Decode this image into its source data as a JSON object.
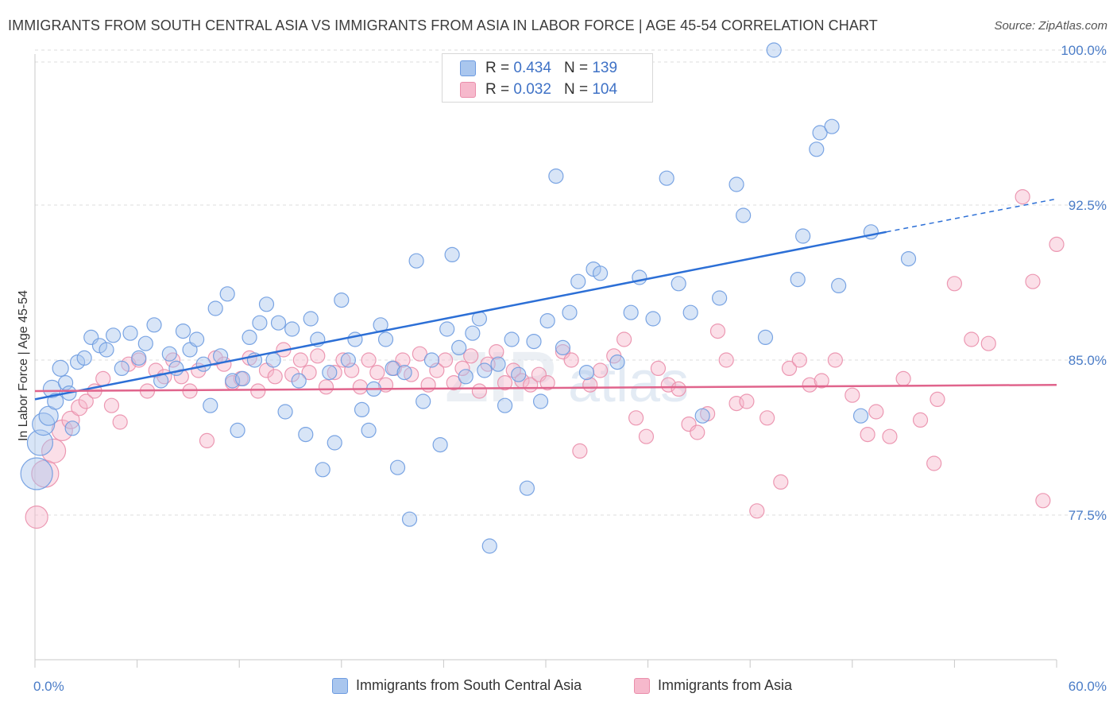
{
  "header": {
    "title": "IMMIGRANTS FROM SOUTH CENTRAL ASIA VS IMMIGRANTS FROM ASIA IN LABOR FORCE | AGE 45-54 CORRELATION CHART",
    "source": "Source: ZipAtlas.com"
  },
  "legend_top": {
    "rows": [
      {
        "r_label": "R =",
        "r_value": "0.434",
        "n_label": "N =",
        "n_value": "139"
      },
      {
        "r_label": "R =",
        "r_value": "0.032",
        "n_label": "N =",
        "n_value": "104"
      }
    ]
  },
  "watermark": {
    "zip": "ZIP",
    "atlas": "atlas"
  },
  "chart_data": {
    "type": "scatter",
    "title": "IMMIGRANTS FROM SOUTH CENTRAL ASIA VS IMMIGRANTS FROM ASIA IN LABOR FORCE | AGE 45-54 CORRELATION CHART",
    "xlabel": "",
    "ylabel": "In Labor Force | Age 45-54",
    "xlim": [
      0,
      60
    ],
    "ylim": [
      70.5,
      100.5
    ],
    "x_tick_labels": [
      "0.0%",
      "60.0%"
    ],
    "y_ticks": [
      77.5,
      85.0,
      92.5,
      100.0
    ],
    "y_tick_labels": [
      "77.5%",
      "85.0%",
      "92.5%",
      "100.0%"
    ],
    "grid": "horizontal dashed",
    "legend_placement": "bottom",
    "colors": {
      "blue_fill": "#a9c6ee",
      "blue_stroke": "#6d9be0",
      "blue_line": "#2c6fd6",
      "pink_fill": "#f6b9cc",
      "pink_stroke": "#ea8eab",
      "pink_line": "#e0648c"
    },
    "series": [
      {
        "name": "Immigrants from South Central Asia",
        "R": 0.434,
        "N": 139,
        "trend": {
          "x0": 0,
          "y0": 83.1,
          "x1": 50.0,
          "y1": 91.2,
          "dash_to_x": 60,
          "dash_to_y": 92.8
        },
        "points": [
          [
            0.1,
            79.5,
            20
          ],
          [
            0.3,
            81.0,
            16
          ],
          [
            0.5,
            81.9,
            14
          ],
          [
            0.8,
            82.3,
            12
          ],
          [
            1.0,
            83.6,
            11
          ],
          [
            1.2,
            83.0,
            10
          ],
          [
            1.5,
            84.6,
            10
          ],
          [
            1.8,
            83.9,
            9
          ],
          [
            2.0,
            83.4,
            9
          ],
          [
            2.2,
            81.7,
            9
          ],
          [
            2.5,
            84.9,
            9
          ],
          [
            2.9,
            85.1,
            9
          ],
          [
            3.3,
            86.1,
            9
          ],
          [
            3.8,
            85.7,
            9
          ],
          [
            4.2,
            85.5,
            9
          ],
          [
            4.6,
            86.2,
            9
          ],
          [
            5.1,
            84.6,
            9
          ],
          [
            5.6,
            86.3,
            9
          ],
          [
            6.1,
            85.1,
            9
          ],
          [
            6.5,
            85.8,
            9
          ],
          [
            7.0,
            86.7,
            9
          ],
          [
            7.4,
            84.0,
            9
          ],
          [
            7.9,
            85.3,
            9
          ],
          [
            8.3,
            84.6,
            9
          ],
          [
            8.7,
            86.4,
            9
          ],
          [
            9.1,
            85.5,
            9
          ],
          [
            9.5,
            86.0,
            9
          ],
          [
            9.9,
            84.8,
            9
          ],
          [
            10.3,
            82.8,
            9
          ],
          [
            10.6,
            87.5,
            9
          ],
          [
            10.9,
            85.2,
            9
          ],
          [
            11.3,
            88.2,
            9
          ],
          [
            11.6,
            84.0,
            9
          ],
          [
            11.9,
            81.6,
            9
          ],
          [
            12.2,
            84.1,
            9
          ],
          [
            12.6,
            86.1,
            9
          ],
          [
            12.9,
            85.0,
            9
          ],
          [
            13.2,
            86.8,
            9
          ],
          [
            13.6,
            87.7,
            9
          ],
          [
            14.0,
            85.0,
            9
          ],
          [
            14.3,
            86.8,
            9
          ],
          [
            14.7,
            82.5,
            9
          ],
          [
            15.1,
            86.5,
            9
          ],
          [
            15.5,
            84.0,
            9
          ],
          [
            15.9,
            81.4,
            9
          ],
          [
            16.2,
            87.0,
            9
          ],
          [
            16.6,
            86.0,
            9
          ],
          [
            16.9,
            79.7,
            9
          ],
          [
            17.3,
            84.4,
            9
          ],
          [
            17.6,
            81.0,
            9
          ],
          [
            18.0,
            87.9,
            9
          ],
          [
            18.4,
            85.0,
            9
          ],
          [
            18.8,
            86.0,
            9
          ],
          [
            19.2,
            82.6,
            9
          ],
          [
            19.6,
            81.6,
            9
          ],
          [
            19.9,
            83.6,
            9
          ],
          [
            20.3,
            86.7,
            9
          ],
          [
            20.6,
            86.0,
            9
          ],
          [
            21.0,
            84.6,
            9
          ],
          [
            21.3,
            79.8,
            9
          ],
          [
            21.7,
            84.4,
            9
          ],
          [
            22.0,
            77.3,
            9
          ],
          [
            22.4,
            89.8,
            9
          ],
          [
            22.8,
            83.0,
            9
          ],
          [
            23.3,
            85.0,
            9
          ],
          [
            23.8,
            80.9,
            9
          ],
          [
            24.2,
            86.5,
            9
          ],
          [
            24.5,
            90.1,
            9
          ],
          [
            24.9,
            85.6,
            9
          ],
          [
            25.3,
            84.2,
            9
          ],
          [
            25.7,
            86.3,
            9
          ],
          [
            26.1,
            87.0,
            9
          ],
          [
            26.4,
            84.5,
            9
          ],
          [
            26.7,
            76.0,
            9
          ],
          [
            27.2,
            84.8,
            9
          ],
          [
            27.6,
            82.8,
            9
          ],
          [
            28.0,
            86.0,
            9
          ],
          [
            28.4,
            84.3,
            9
          ],
          [
            28.9,
            78.8,
            9
          ],
          [
            29.3,
            85.9,
            9
          ],
          [
            29.7,
            83.0,
            9
          ],
          [
            30.1,
            86.9,
            9
          ],
          [
            30.6,
            93.9,
            9
          ],
          [
            31.0,
            85.6,
            9
          ],
          [
            31.4,
            87.3,
            9
          ],
          [
            31.9,
            88.8,
            9
          ],
          [
            32.4,
            84.4,
            9
          ],
          [
            32.8,
            89.4,
            9
          ],
          [
            33.2,
            89.2,
            9
          ],
          [
            34.2,
            84.9,
            9
          ],
          [
            35.0,
            87.3,
            9
          ],
          [
            35.5,
            89.0,
            9
          ],
          [
            36.3,
            87.0,
            9
          ],
          [
            37.1,
            93.8,
            9
          ],
          [
            37.8,
            88.7,
            9
          ],
          [
            38.5,
            87.3,
            9
          ],
          [
            39.2,
            82.3,
            9
          ],
          [
            40.2,
            88.0,
            9
          ],
          [
            41.2,
            93.5,
            9
          ],
          [
            41.6,
            92.0,
            9
          ],
          [
            42.9,
            86.1,
            9
          ],
          [
            43.4,
            100.0,
            9
          ],
          [
            44.8,
            88.9,
            9
          ],
          [
            45.1,
            91.0,
            9
          ],
          [
            45.9,
            95.2,
            9
          ],
          [
            46.1,
            96.0,
            9
          ],
          [
            46.8,
            96.3,
            9
          ],
          [
            47.2,
            88.6,
            9
          ],
          [
            48.5,
            82.3,
            9
          ],
          [
            49.1,
            91.2,
            9
          ],
          [
            51.3,
            89.9,
            9
          ]
        ]
      },
      {
        "name": "Immigrants from Asia",
        "R": 0.032,
        "N": 104,
        "trend": {
          "x0": 0,
          "y0": 83.5,
          "x1": 60,
          "y1": 83.8
        },
        "points": [
          [
            0.1,
            77.4,
            14
          ],
          [
            0.6,
            79.5,
            17
          ],
          [
            1.1,
            80.6,
            15
          ],
          [
            1.6,
            81.6,
            13
          ],
          [
            2.1,
            82.1,
            11
          ],
          [
            2.6,
            82.7,
            10
          ],
          [
            3.0,
            83.0,
            9
          ],
          [
            3.5,
            83.5,
            9
          ],
          [
            4.0,
            84.1,
            9
          ],
          [
            4.5,
            82.8,
            9
          ],
          [
            5.0,
            82.0,
            9
          ],
          [
            5.5,
            84.8,
            9
          ],
          [
            6.1,
            85.0,
            9
          ],
          [
            6.6,
            83.5,
            9
          ],
          [
            7.1,
            84.5,
            9
          ],
          [
            7.6,
            84.2,
            9
          ],
          [
            8.1,
            85.0,
            9
          ],
          [
            8.6,
            84.2,
            9
          ],
          [
            9.1,
            83.5,
            9
          ],
          [
            9.6,
            84.5,
            9
          ],
          [
            10.1,
            81.1,
            9
          ],
          [
            10.6,
            85.1,
            9
          ],
          [
            11.1,
            84.8,
            9
          ],
          [
            11.6,
            83.9,
            9
          ],
          [
            12.1,
            84.1,
            9
          ],
          [
            12.6,
            85.1,
            9
          ],
          [
            13.1,
            83.5,
            9
          ],
          [
            13.6,
            84.5,
            9
          ],
          [
            14.1,
            84.2,
            9
          ],
          [
            14.6,
            85.5,
            9
          ],
          [
            15.1,
            84.3,
            9
          ],
          [
            15.6,
            85.0,
            9
          ],
          [
            16.1,
            84.4,
            9
          ],
          [
            16.6,
            85.2,
            9
          ],
          [
            17.1,
            83.7,
            9
          ],
          [
            17.6,
            84.4,
            9
          ],
          [
            18.1,
            85.0,
            9
          ],
          [
            18.6,
            84.5,
            9
          ],
          [
            19.1,
            83.7,
            9
          ],
          [
            19.6,
            85.0,
            9
          ],
          [
            20.1,
            84.4,
            9
          ],
          [
            20.6,
            83.8,
            9
          ],
          [
            21.1,
            84.6,
            9
          ],
          [
            21.6,
            85.0,
            9
          ],
          [
            22.1,
            84.3,
            9
          ],
          [
            22.6,
            85.3,
            9
          ],
          [
            23.1,
            83.8,
            9
          ],
          [
            23.6,
            84.5,
            9
          ],
          [
            24.1,
            85.0,
            9
          ],
          [
            24.6,
            83.9,
            9
          ],
          [
            25.1,
            84.6,
            9
          ],
          [
            25.6,
            85.2,
            9
          ],
          [
            26.1,
            83.5,
            9
          ],
          [
            26.6,
            84.8,
            9
          ],
          [
            27.1,
            85.4,
            9
          ],
          [
            27.6,
            83.9,
            9
          ],
          [
            28.1,
            84.5,
            9
          ],
          [
            28.6,
            84.0,
            9
          ],
          [
            29.1,
            83.8,
            9
          ],
          [
            29.6,
            84.3,
            9
          ],
          [
            30.1,
            83.9,
            9
          ],
          [
            31.0,
            85.4,
            9
          ],
          [
            31.5,
            85.0,
            9
          ],
          [
            32.0,
            80.6,
            9
          ],
          [
            32.6,
            83.8,
            9
          ],
          [
            33.2,
            84.5,
            9
          ],
          [
            34.0,
            85.2,
            9
          ],
          [
            34.6,
            86.0,
            9
          ],
          [
            35.3,
            82.2,
            9
          ],
          [
            35.9,
            81.3,
            9
          ],
          [
            36.6,
            84.6,
            9
          ],
          [
            37.2,
            83.8,
            9
          ],
          [
            37.8,
            83.6,
            9
          ],
          [
            38.4,
            81.9,
            9
          ],
          [
            38.9,
            81.5,
            9
          ],
          [
            39.5,
            82.4,
            9
          ],
          [
            40.1,
            86.4,
            9
          ],
          [
            40.6,
            85.0,
            9
          ],
          [
            41.2,
            82.9,
            9
          ],
          [
            41.8,
            83.0,
            9
          ],
          [
            42.4,
            77.7,
            9
          ],
          [
            43.0,
            82.2,
            9
          ],
          [
            43.8,
            79.1,
            9
          ],
          [
            44.3,
            84.6,
            9
          ],
          [
            44.9,
            85.0,
            9
          ],
          [
            45.5,
            83.8,
            9
          ],
          [
            46.2,
            84.0,
            9
          ],
          [
            47.0,
            85.0,
            9
          ],
          [
            48.0,
            83.3,
            9
          ],
          [
            48.9,
            81.4,
            9
          ],
          [
            49.4,
            82.5,
            9
          ],
          [
            50.2,
            81.3,
            9
          ],
          [
            51.0,
            84.1,
            9
          ],
          [
            52.0,
            82.1,
            9
          ],
          [
            52.8,
            80.0,
            9
          ],
          [
            53.0,
            83.1,
            9
          ],
          [
            54.0,
            88.7,
            9
          ],
          [
            55.0,
            86.0,
            9
          ],
          [
            56.0,
            85.8,
            9
          ],
          [
            58.0,
            92.9,
            9
          ],
          [
            58.6,
            88.8,
            9
          ],
          [
            59.2,
            78.2,
            9
          ],
          [
            60.0,
            90.6,
            9
          ]
        ]
      }
    ]
  },
  "legend_bottom": {
    "items": [
      "Immigrants from South Central Asia",
      "Immigrants from Asia"
    ]
  }
}
